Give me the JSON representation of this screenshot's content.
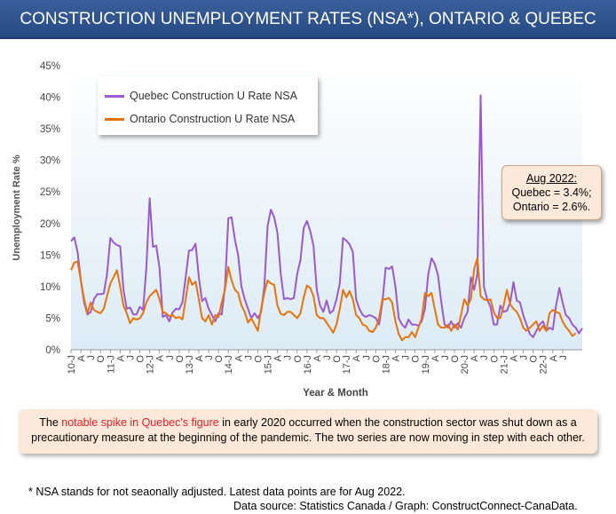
{
  "title": "CONSTRUCTION UNEMPLOYMENT RATES (NSA*),  ONTARIO & QUEBEC",
  "legend": {
    "quebec": "Quebec Construction U Rate NSA",
    "ontario": "Ontario Construction U Rate NSA"
  },
  "callout": {
    "heading": "Aug 2022:",
    "line1": "Quebec = 3.4%;",
    "line2": "Ontario = 2.6%."
  },
  "note": {
    "part1": "The ",
    "highlight": "notable spike in Quebec's figure",
    "part2": " in early 2020 occurred when the construction sector was shut down as a precautionary measure at the beginning of the pandemic. The two series are now moving in step with each other."
  },
  "footnote": "* NSA stands for not seaonally adjusted. Latest data points are for Aug 2022.",
  "source": "Data source: Statistics Canada / Graph: ConstructConnect-CanaData.",
  "colors": {
    "quebec": "#9b59d0",
    "ontario": "#e8720c",
    "title_bg": "#2f5590",
    "plot_bg": "#e8f2f8"
  },
  "chart_data": {
    "type": "line",
    "xlabel": "Year & Month",
    "ylabel": "Unemployment Rate %",
    "ylim": [
      0,
      45
    ],
    "yticks": [
      "0%",
      "5%",
      "10%",
      "15%",
      "20%",
      "25%",
      "30%",
      "35%",
      "40%",
      "45%"
    ],
    "grid": false,
    "legend_position": "top-left",
    "xtick_labels": [
      "10-J",
      "A",
      "J",
      "O",
      "11-J",
      "A",
      "J",
      "O",
      "12-J",
      "A",
      "J",
      "O",
      "13-J",
      "A",
      "J",
      "O",
      "14-J",
      "A",
      "J",
      "O",
      "15-J",
      "A",
      "J",
      "O",
      "16-J",
      "A",
      "J",
      "O",
      "17-J",
      "A",
      "J",
      "O",
      "18-J",
      "A",
      "J",
      "O",
      "19-J",
      "A",
      "J",
      "O",
      "20-J",
      "A",
      "J",
      "O",
      "21-J",
      "A",
      "J",
      "O",
      "22-J",
      "A",
      "J"
    ],
    "series": [
      {
        "name": "Quebec Construction U Rate NSA",
        "values": [
          17.2,
          17.8,
          15.5,
          11.0,
          7.5,
          5.6,
          6.0,
          8.0,
          8.8,
          8.8,
          8.9,
          12.0,
          17.7,
          17.0,
          16.6,
          16.4,
          9.5,
          6.5,
          6.7,
          5.6,
          5.6,
          6.8,
          6.3,
          13.0,
          24.0,
          16.3,
          16.5,
          13.0,
          5.2,
          5.5,
          4.5,
          5.9,
          6.5,
          6.4,
          7.5,
          11.5,
          15.7,
          15.8,
          16.8,
          11.5,
          7.7,
          8.2,
          6.5,
          5.5,
          4.5,
          5.8,
          5.6,
          10.0,
          20.8,
          21.0,
          17.5,
          15.0,
          10.0,
          8.0,
          6.5,
          5.0,
          5.8,
          5.0,
          6.0,
          10.0,
          19.6,
          22.2,
          21.0,
          18.5,
          12.0,
          8.0,
          8.2,
          8.0,
          8.2,
          12.0,
          14.2,
          19.3,
          20.4,
          18.8,
          16.5,
          9.5,
          7.0,
          6.0,
          7.8,
          5.8,
          6.2,
          8.0,
          10.5,
          17.7,
          17.3,
          16.7,
          15.5,
          8.0,
          6.5,
          5.5,
          5.2,
          5.5,
          5.3,
          5.0,
          4.0,
          7.5,
          13.0,
          12.8,
          13.2,
          10.0,
          5.0,
          4.0,
          3.5,
          4.8,
          4.0,
          4.0,
          3.8,
          4.5,
          6.5,
          12.0,
          14.5,
          13.6,
          11.8,
          7.5,
          4.0,
          3.5,
          4.5,
          3.5,
          4.2,
          3.5,
          5.0,
          6.0,
          11.5,
          9.5,
          12.0,
          40.3,
          10.0,
          8.0,
          6.8,
          4.0,
          4.0,
          7.0,
          6.0,
          6.2,
          7.5,
          10.7,
          7.8,
          7.5,
          5.5,
          4.0,
          2.5,
          2.0,
          3.0,
          4.0,
          4.5,
          3.0,
          3.5,
          3.2,
          7.0,
          9.8,
          7.5,
          5.5,
          5.0,
          4.0,
          3.5,
          2.6,
          3.4
        ]
      },
      {
        "name": "Ontario Construction U Rate NSA",
        "values": [
          12.6,
          13.8,
          14.0,
          11.0,
          8.0,
          5.8,
          7.5,
          6.3,
          6.0,
          5.8,
          6.5,
          8.5,
          10.5,
          11.5,
          12.6,
          10.0,
          7.0,
          5.8,
          4.2,
          5.0,
          4.8,
          5.0,
          5.8,
          7.5,
          8.5,
          9.0,
          9.5,
          8.0,
          6.0,
          5.8,
          5.3,
          5.5,
          5.0,
          5.2,
          4.8,
          8.0,
          11.5,
          10.3,
          10.8,
          8.0,
          5.0,
          4.5,
          5.5,
          4.0,
          5.5,
          5.2,
          7.5,
          9.5,
          13.1,
          11.0,
          9.5,
          9.0,
          7.0,
          6.0,
          4.3,
          5.0,
          4.0,
          3.0,
          6.5,
          9.0,
          11.0,
          10.5,
          10.3,
          7.0,
          5.7,
          5.5,
          6.0,
          6.0,
          5.5,
          5.0,
          5.8,
          8.3,
          10.2,
          9.8,
          8.5,
          5.5,
          5.0,
          5.0,
          4.3,
          3.5,
          2.7,
          4.0,
          6.5,
          9.5,
          8.3,
          9.3,
          8.0,
          5.5,
          5.0,
          4.0,
          3.8,
          3.0,
          2.8,
          3.5,
          5.0,
          8.0,
          8.0,
          8.2,
          7.5,
          4.5,
          2.5,
          1.5,
          2.0,
          2.0,
          2.8,
          2.0,
          3.5,
          5.0,
          9.0,
          8.5,
          9.0,
          6.5,
          4.0,
          3.5,
          3.5,
          4.0,
          3.0,
          4.0,
          3.2,
          5.5,
          8.0,
          7.0,
          8.0,
          12.8,
          14.5,
          8.5,
          8.0,
          7.8,
          8.0,
          6.0,
          5.0,
          5.0,
          7.0,
          9.5,
          7.2,
          6.5,
          6.0,
          5.0,
          3.5,
          3.0,
          3.5,
          4.0,
          4.5,
          3.0,
          3.8,
          3.0,
          5.8,
          6.3,
          6.0,
          5.8,
          4.5,
          3.6,
          3.0,
          2.2,
          2.6
        ]
      }
    ]
  }
}
